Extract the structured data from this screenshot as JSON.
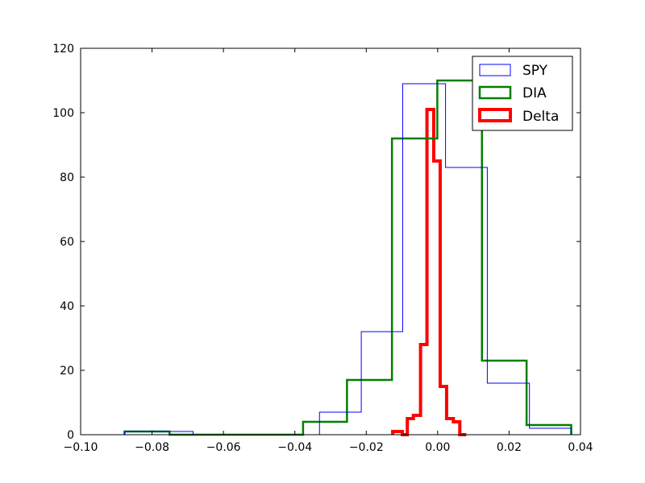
{
  "chart_data": {
    "type": "histogram",
    "title": "",
    "xlabel": "",
    "ylabel": "",
    "xlim": [
      -0.1,
      0.04
    ],
    "ylim": [
      0,
      120
    ],
    "x_ticks": [
      -0.1,
      -0.08,
      -0.06,
      -0.04,
      -0.02,
      0.0,
      0.02,
      0.04
    ],
    "x_tick_labels": [
      "−0.10",
      "−0.08",
      "−0.06",
      "−0.04",
      "−0.02",
      "0.00",
      "0.02",
      "0.04"
    ],
    "y_ticks": [
      0,
      20,
      40,
      60,
      80,
      100,
      120
    ],
    "y_tick_labels": [
      "0",
      "20",
      "40",
      "60",
      "80",
      "100",
      "120"
    ],
    "grid": false,
    "legend_position": "top-right",
    "series": [
      {
        "name": "SPY",
        "color": "#0000ff",
        "line_width": "thin",
        "bin_edges": [
          -0.0877,
          -0.0759,
          -0.0685,
          -0.0448,
          -0.0331,
          -0.0214,
          -0.0098,
          0.0022,
          0.0139,
          0.0257,
          0.0374
        ],
        "counts": [
          1,
          1,
          0,
          0,
          7,
          32,
          109,
          83,
          16,
          2
        ]
      },
      {
        "name": "DIA",
        "color": "#008000",
        "line_width": "medium",
        "bin_edges": [
          -0.0877,
          -0.0751,
          -0.0626,
          -0.0502,
          -0.0377,
          -0.0254,
          -0.0128,
          -0.0001,
          0.0124,
          0.0249,
          0.0374
        ],
        "counts": [
          1,
          0,
          0,
          0,
          4,
          17,
          92,
          110,
          23,
          3
        ]
      },
      {
        "name": "Delta",
        "color": "#ff0000",
        "line_width": "thick",
        "bin_edges": [
          -0.0126,
          -0.0099,
          -0.0085,
          -0.0068,
          -0.0048,
          -0.003,
          -0.0011,
          0.0007,
          0.0025,
          0.0044,
          0.0062,
          0.008
        ],
        "counts": [
          1,
          0,
          5,
          6,
          28,
          101,
          85,
          15,
          5,
          4,
          0
        ]
      }
    ]
  }
}
